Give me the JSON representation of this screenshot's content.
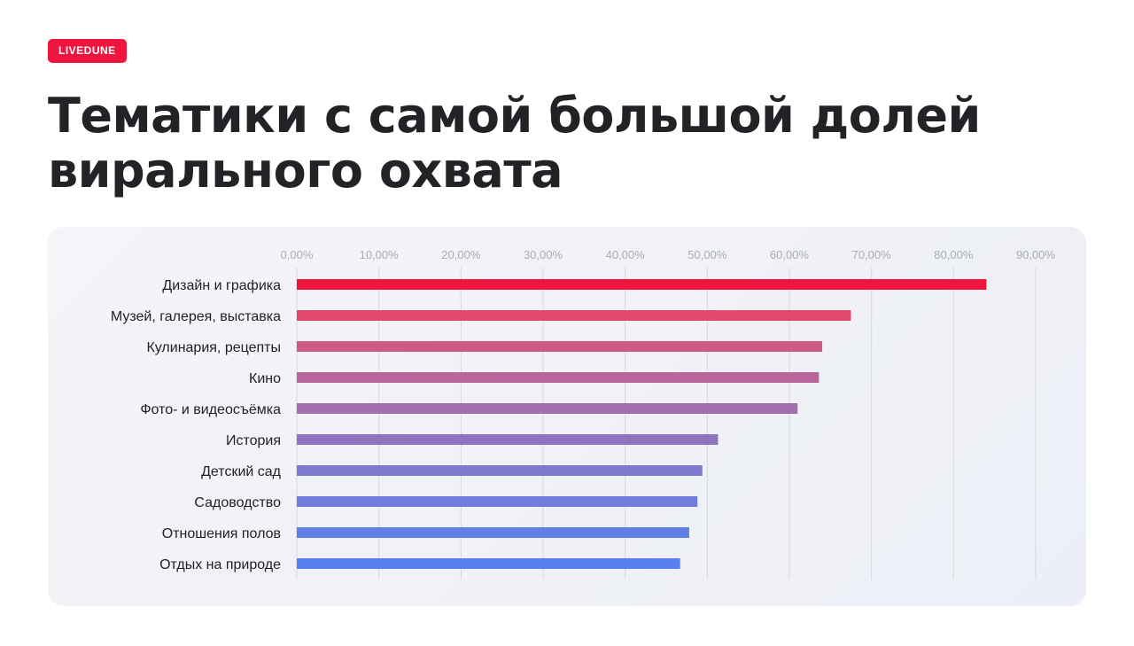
{
  "brand": {
    "label": "LIVEDUNE"
  },
  "header": {
    "title_line1": "Тематики с самой большой долей",
    "title_line2": "вирального охвата"
  },
  "chart_data": {
    "type": "bar",
    "orientation": "horizontal",
    "categories": [
      "Дизайн и графика",
      "Музей, галерея, выставка",
      "Кулинария, рецепты",
      "Кино",
      "Фото- и видеосъёмка",
      "История",
      "Детский сад",
      "Садоводство",
      "Отношения полов",
      "Отдых на природе"
    ],
    "values": [
      84.0,
      67.5,
      64.0,
      63.6,
      61.0,
      51.3,
      49.4,
      48.8,
      47.8,
      46.7
    ],
    "value_unit": "%",
    "xlim": [
      0,
      90
    ],
    "x_ticks": [
      0,
      10,
      20,
      30,
      40,
      50,
      60,
      70,
      80,
      90
    ],
    "x_tick_labels": [
      "0,00%",
      "10,00%",
      "20,00%",
      "30,00%",
      "40,00%",
      "50,00%",
      "60,00%",
      "70,00%",
      "80,00%",
      "90,00%"
    ],
    "x_axis_position": "top",
    "grid": true,
    "bar_colors": [
      "#f0153f",
      "#e0496d",
      "#cc5a82",
      "#b8669a",
      "#a46fb0",
      "#8e74c0",
      "#7f79cf",
      "#707ddc",
      "#617fe6",
      "#5980f0"
    ],
    "title": "",
    "xlabel": "",
    "ylabel": ""
  }
}
